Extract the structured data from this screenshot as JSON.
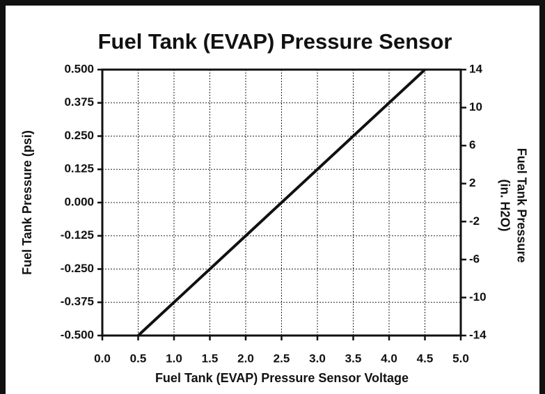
{
  "chart_data": {
    "type": "line",
    "title": "Fuel Tank (EVAP) Pressure Sensor",
    "xlabel": "Fuel Tank (EVAP) Pressure Sensor Voltage",
    "ylabel": "Fuel Tank Pressure (psi)",
    "y2label": [
      "Fuel Tank Pressure",
      "(in. H2O)"
    ],
    "series": [
      {
        "color": "#111111",
        "x": [
          0.5,
          4.5
        ],
        "values": [
          -0.5,
          0.5
        ]
      }
    ],
    "xlim": [
      0,
      5
    ],
    "xticks": [
      {
        "value": 0,
        "label": "0.0"
      },
      0.5,
      {
        "value": 1,
        "label": "1.0"
      },
      1.5,
      {
        "value": 2,
        "label": "2.0"
      },
      2.5,
      {
        "value": 3,
        "label": "3.0"
      },
      3.5,
      {
        "value": 4,
        "label": "4.0"
      },
      4.5,
      {
        "value": 5,
        "label": "5.0"
      }
    ],
    "ylim": [
      -0.5,
      0.5
    ],
    "yticks": [
      {
        "value": -0.5,
        "label": "-0.500"
      },
      -0.375,
      {
        "value": -0.25,
        "label": "-0.250"
      },
      -0.125,
      {
        "value": 0,
        "label": "0.000"
      },
      0.125,
      {
        "value": 0.25,
        "label": "0.250"
      },
      0.375,
      {
        "value": 0.5,
        "label": "0.500"
      }
    ],
    "y2lim": [
      -14,
      14
    ],
    "y2ticks": [
      -14,
      -10,
      -6,
      -2,
      2,
      6,
      10,
      14
    ],
    "grid": true
  }
}
